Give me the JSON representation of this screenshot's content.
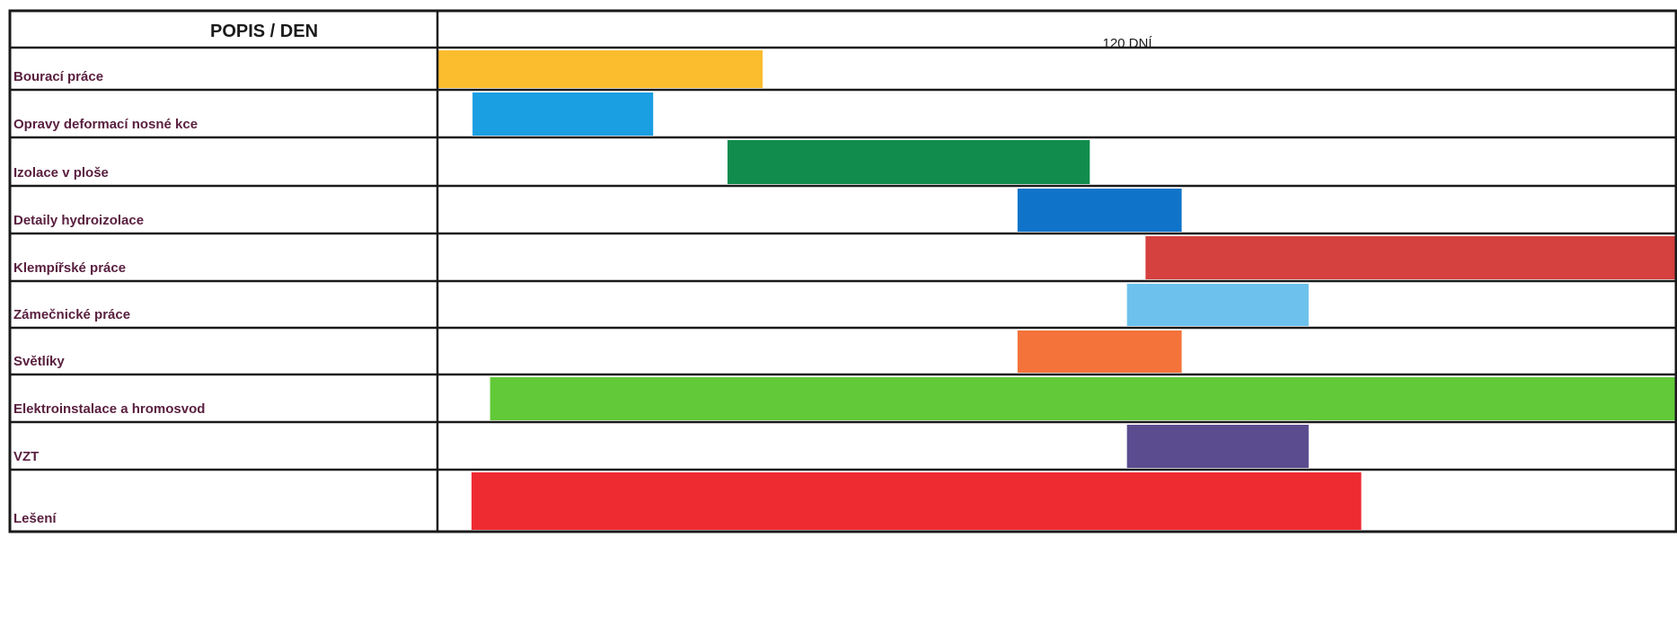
{
  "chart_data": {
    "type": "gantt",
    "header_left": "POPIS / DEN",
    "header_right": "120 DNÍ",
    "xlim": [
      0,
      120
    ],
    "tasks": [
      {
        "label": "Bourací práce",
        "start": 0,
        "end": 31.5,
        "color": "#fbbd2e"
      },
      {
        "label": "Opravy deformací nosné kce",
        "start": 3.4,
        "end": 20.9,
        "color": "#1a9fe3"
      },
      {
        "label": "Izolace v ploše",
        "start": 28.1,
        "end": 63.2,
        "color": "#118c4c"
      },
      {
        "label": "Detaily hydroizolace",
        "start": 56.2,
        "end": 72.1,
        "color": "#0f74c9"
      },
      {
        "label": "Klempířské práce",
        "start": 68.6,
        "end": 120,
        "color": "#d5413e"
      },
      {
        "label": "Zámečnické práce",
        "start": 66.8,
        "end": 84.4,
        "color": "#6cc2ec"
      },
      {
        "label": "Světlíky",
        "start": 56.2,
        "end": 72.1,
        "color": "#f4733a"
      },
      {
        "label": "Elektroinstalace a hromosvod",
        "start": 5.1,
        "end": 120,
        "color": "#62c939"
      },
      {
        "label": "VZT",
        "start": 66.8,
        "end": 84.4,
        "color": "#5a4c8e"
      },
      {
        "label": "Lešení",
        "start": 3.3,
        "end": 89.5,
        "color": "#ef2b32"
      }
    ]
  }
}
